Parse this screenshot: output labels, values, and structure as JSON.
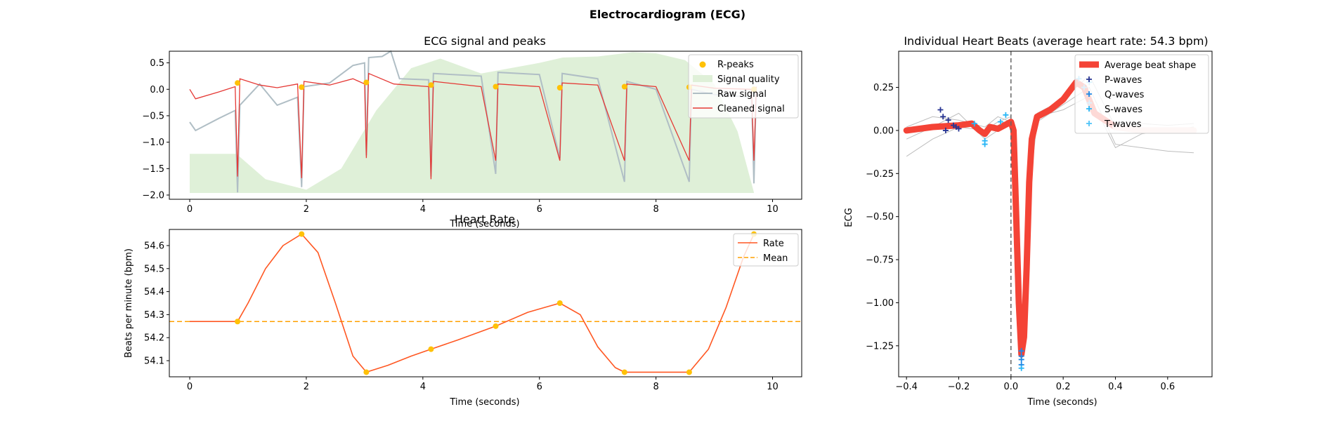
{
  "figure": {
    "suptitle": "Electrocardiogram (ECG)"
  },
  "chart_data": [
    {
      "id": "ecg",
      "type": "line",
      "title": "ECG signal and peaks",
      "xlabel": "Time (seconds)",
      "ylabel": "",
      "xlim": [
        -0.35,
        10.5
      ],
      "ylim": [
        -2.08,
        0.72
      ],
      "xticks": [
        0,
        2,
        4,
        6,
        8,
        10
      ],
      "yticks": [
        0.5,
        0.0,
        -0.5,
        -1.0,
        -1.5,
        -2.0
      ],
      "xtick_labels": [
        "0",
        "2",
        "4",
        "6",
        "8",
        "10"
      ],
      "ytick_labels": [
        "0.5",
        "0.0",
        "−0.5",
        "−1.0",
        "−1.5",
        "−2.0"
      ],
      "legend": {
        "position": "top-right",
        "entries": [
          "R-peaks",
          "Signal quality",
          "Raw signal",
          "Cleaned signal"
        ]
      },
      "colors": {
        "rpeaks": "#FFC107",
        "quality": "#DFF0D8",
        "raw": "#B0BEC5",
        "clean": "#E53935"
      },
      "r_peaks": {
        "x": [
          0.82,
          1.92,
          3.03,
          4.14,
          5.25,
          6.35,
          7.46,
          8.57,
          9.68
        ],
        "y": [
          0.12,
          0.04,
          0.13,
          0.08,
          0.05,
          0.03,
          0.05,
          0.04,
          0.0
        ]
      },
      "signal_quality": {
        "x": [
          0.0,
          0.4,
          0.8,
          1.3,
          2.0,
          2.6,
          3.2,
          3.8,
          4.3,
          5.0,
          6.0,
          6.4,
          7.0,
          7.6,
          8.0,
          8.5,
          9.0,
          9.4,
          9.68
        ],
        "y": [
          -1.22,
          -1.22,
          -1.22,
          -1.7,
          -1.9,
          -1.5,
          -0.4,
          0.4,
          0.58,
          0.3,
          0.5,
          0.6,
          0.62,
          0.7,
          0.68,
          0.55,
          0.1,
          -0.8,
          -1.95
        ]
      },
      "raw_signal": {
        "x": [
          0.0,
          0.1,
          0.5,
          0.78,
          0.82,
          0.86,
          1.2,
          1.5,
          1.85,
          1.92,
          1.96,
          2.4,
          2.8,
          3.0,
          3.03,
          3.07,
          3.3,
          3.45,
          3.6,
          4.1,
          4.14,
          4.18,
          5.0,
          5.25,
          5.29,
          6.0,
          6.35,
          6.39,
          7.0,
          7.46,
          7.5,
          8.0,
          8.57,
          8.61,
          9.0,
          9.64,
          9.68,
          9.72
        ],
        "y": [
          -0.62,
          -0.78,
          -0.55,
          -0.4,
          -1.95,
          -0.3,
          0.1,
          -0.3,
          -0.15,
          -1.85,
          0.05,
          0.12,
          0.45,
          0.5,
          -1.25,
          0.6,
          0.62,
          0.72,
          0.2,
          0.18,
          -1.65,
          0.3,
          0.25,
          -1.6,
          0.32,
          0.28,
          -1.3,
          0.3,
          0.2,
          -1.75,
          0.15,
          0.0,
          -1.75,
          0.0,
          -0.1,
          -0.15,
          -1.78,
          0.0
        ]
      },
      "cleaned_signal": {
        "x": [
          0.0,
          0.1,
          0.5,
          0.78,
          0.82,
          0.86,
          1.2,
          1.5,
          1.85,
          1.92,
          1.96,
          2.4,
          2.8,
          3.0,
          3.03,
          3.07,
          3.5,
          4.1,
          4.14,
          4.18,
          5.0,
          5.25,
          5.29,
          6.0,
          6.35,
          6.39,
          7.0,
          7.46,
          7.5,
          8.0,
          8.57,
          8.61,
          9.0,
          9.64,
          9.68,
          9.72
        ],
        "y": [
          0.0,
          -0.18,
          -0.05,
          0.05,
          -1.65,
          0.2,
          0.08,
          0.03,
          0.1,
          -1.68,
          0.15,
          0.08,
          0.2,
          0.1,
          -1.3,
          0.3,
          0.1,
          0.05,
          -1.7,
          0.15,
          0.05,
          -1.35,
          0.1,
          0.05,
          -1.35,
          0.12,
          0.08,
          -1.35,
          0.1,
          0.05,
          -1.35,
          0.08,
          0.02,
          0.0,
          -1.35,
          0.05
        ]
      }
    },
    {
      "id": "rate",
      "type": "line",
      "title": "Heart Rate",
      "xlabel": "Time (seconds)",
      "ylabel": "Beats per minute (bpm)",
      "xlim": [
        -0.35,
        10.5
      ],
      "ylim": [
        54.03,
        54.67
      ],
      "xticks": [
        0,
        2,
        4,
        6,
        8,
        10
      ],
      "yticks": [
        54.6,
        54.5,
        54.4,
        54.3,
        54.2,
        54.1
      ],
      "xtick_labels": [
        "0",
        "2",
        "4",
        "6",
        "8",
        "10"
      ],
      "ytick_labels": [
        "54.6",
        "54.5",
        "54.4",
        "54.3",
        "54.2",
        "54.1"
      ],
      "legend": {
        "position": "top-right",
        "entries": [
          "Rate",
          "Mean"
        ]
      },
      "colors": {
        "rate": "#FF5722",
        "mean": "#FFA000",
        "points": "#FFC107"
      },
      "mean": 54.27,
      "rate_points": {
        "x": [
          0.82,
          1.92,
          3.03,
          4.14,
          5.25,
          6.35,
          7.46,
          8.57,
          9.68
        ],
        "y": [
          54.27,
          54.65,
          54.05,
          54.15,
          54.25,
          54.35,
          54.05,
          54.05,
          54.65
        ]
      },
      "rate_curve": {
        "x": [
          0.0,
          0.82,
          1.0,
          1.3,
          1.6,
          1.92,
          2.2,
          2.5,
          2.8,
          3.03,
          3.4,
          3.8,
          4.14,
          4.6,
          5.25,
          5.8,
          6.35,
          6.7,
          7.0,
          7.3,
          7.46,
          8.0,
          8.57,
          8.9,
          9.2,
          9.5,
          9.68
        ],
        "y": [
          54.27,
          54.27,
          54.35,
          54.5,
          54.6,
          54.65,
          54.57,
          54.35,
          54.12,
          54.05,
          54.08,
          54.12,
          54.15,
          54.19,
          54.25,
          54.31,
          54.35,
          54.3,
          54.16,
          54.07,
          54.05,
          54.05,
          54.05,
          54.15,
          54.33,
          54.55,
          54.65
        ]
      }
    },
    {
      "id": "beats",
      "type": "line",
      "title": "Individual Heart Beats (average heart rate: 54.3 bpm)",
      "xlabel": "Time (seconds)",
      "ylabel": "ECG",
      "xlim": [
        -0.43,
        0.77
      ],
      "ylim": [
        -1.43,
        0.46
      ],
      "xticks": [
        -0.4,
        -0.2,
        0.0,
        0.2,
        0.4,
        0.6
      ],
      "yticks": [
        0.25,
        0.0,
        -0.25,
        -0.5,
        -0.75,
        -1.0,
        -1.25
      ],
      "xtick_labels": [
        "−0.4",
        "−0.2",
        "0.0",
        "0.2",
        "0.4",
        "0.6"
      ],
      "ytick_labels": [
        "0.25",
        "0.00",
        "−0.25",
        "−0.50",
        "−0.75",
        "−1.00",
        "−1.25"
      ],
      "vline_x": 0.0,
      "legend": {
        "position": "top-right",
        "entries": [
          "Average beat shape",
          "P-waves",
          "Q-waves",
          "S-waves",
          "T-waves"
        ]
      },
      "colors": {
        "avg": "#F44336",
        "avg_fade": "#F8D7D2",
        "p": "#283593",
        "q": "#1E88E5",
        "s": "#29B6F6",
        "t": "#4FC3F7",
        "thin": "#BDBDBD"
      },
      "average_beat": {
        "x": [
          -0.4,
          -0.3,
          -0.2,
          -0.15,
          -0.12,
          -0.1,
          -0.08,
          -0.05,
          0.0,
          0.01,
          0.02,
          0.03,
          0.04,
          0.05,
          0.06,
          0.07,
          0.08,
          0.1,
          0.15,
          0.2,
          0.25,
          0.28,
          0.32,
          0.4,
          0.5,
          0.6,
          0.7
        ],
        "y": [
          0.0,
          0.02,
          0.03,
          0.04,
          0.0,
          -0.02,
          0.02,
          0.01,
          0.05,
          0.0,
          -0.5,
          -1.0,
          -1.3,
          -1.2,
          -0.8,
          -0.3,
          -0.05,
          0.08,
          0.12,
          0.18,
          0.28,
          0.25,
          0.1,
          0.02,
          0.0,
          0.0,
          0.0
        ]
      },
      "individual_beats": [
        {
          "x": [
            -0.4,
            -0.3,
            -0.2,
            -0.1,
            -0.05,
            0.0,
            0.02,
            0.04,
            0.06,
            0.1,
            0.2,
            0.3,
            0.4,
            0.5,
            0.6,
            0.7
          ],
          "y": [
            -0.15,
            -0.05,
            0.02,
            0.0,
            0.05,
            0.08,
            -0.7,
            -1.35,
            -0.5,
            0.05,
            0.15,
            0.25,
            -0.08,
            -0.1,
            -0.12,
            -0.13
          ]
        },
        {
          "x": [
            -0.4,
            -0.3,
            -0.2,
            -0.1,
            -0.05,
            0.0,
            0.02,
            0.04,
            0.06,
            0.1,
            0.2,
            0.3,
            0.4,
            0.5,
            0.6,
            0.7
          ],
          "y": [
            0.02,
            0.08,
            0.06,
            0.02,
            0.08,
            0.05,
            -0.5,
            -1.25,
            -0.4,
            0.1,
            0.18,
            0.32,
            0.02,
            0.04,
            0.03,
            0.04
          ]
        },
        {
          "x": [
            -0.4,
            -0.3,
            -0.2,
            -0.1,
            -0.05,
            0.0,
            0.02,
            0.04,
            0.06,
            0.1,
            0.2,
            0.3,
            0.4,
            0.5,
            0.6,
            0.7
          ],
          "y": [
            -0.05,
            0.02,
            0.1,
            -0.05,
            0.0,
            0.06,
            -0.6,
            -1.3,
            -0.45,
            0.08,
            0.12,
            0.2,
            -0.1,
            -0.02,
            0.0,
            0.02
          ]
        }
      ],
      "p_waves": {
        "x": [
          -0.27,
          -0.26,
          -0.24,
          -0.22,
          -0.21,
          -0.2,
          -0.25
        ],
        "y": [
          0.12,
          0.08,
          0.06,
          0.03,
          0.02,
          0.01,
          0.0
        ]
      },
      "q_waves": {
        "x": [
          0.04,
          0.04,
          0.04,
          0.04
        ],
        "y": [
          -1.28,
          -1.31,
          -1.33,
          -1.36
        ]
      },
      "s_waves": {
        "x": [
          -0.14,
          -0.1,
          -0.1,
          -0.04,
          -0.02,
          0.04
        ],
        "y": [
          0.04,
          -0.06,
          -0.08,
          0.05,
          0.09,
          -1.38
        ]
      },
      "t_waves": {
        "x": [
          0.26,
          0.28,
          0.3,
          0.3
        ],
        "y": [
          0.3,
          0.25,
          0.16,
          0.28
        ]
      }
    }
  ]
}
